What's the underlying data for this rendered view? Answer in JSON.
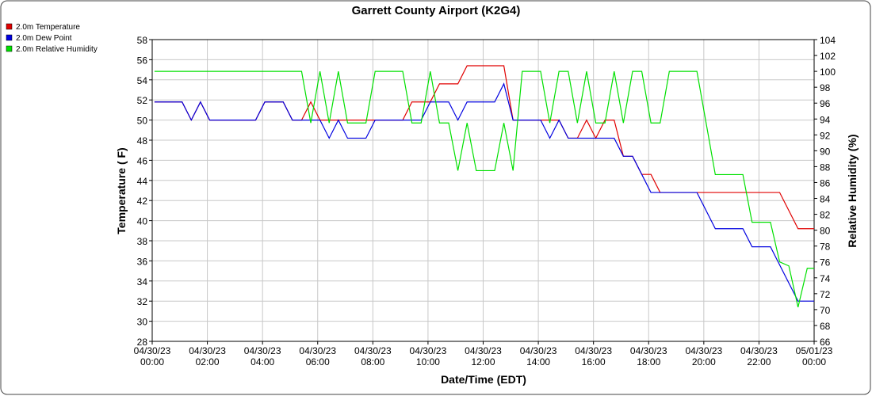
{
  "chart_data": {
    "type": "line",
    "title": "Garrett County Airport (K2G4)",
    "x_label": "Date/Time (EDT)",
    "y_label": "Temperature ( F)",
    "y2_label": "Relative Humidity (%)",
    "grid": true,
    "legend": "top-left",
    "x": [
      5,
      25,
      45,
      65,
      85,
      105,
      125,
      145,
      165,
      185,
      205,
      225,
      245,
      265,
      285,
      305,
      325,
      345,
      365,
      385,
      405,
      425,
      445,
      465,
      485,
      505,
      525,
      545,
      565,
      585,
      605,
      625,
      645,
      665,
      685,
      705,
      725,
      745,
      765,
      785,
      805,
      825,
      845,
      865,
      885,
      905,
      925,
      945,
      965,
      985,
      1005,
      1025,
      1045,
      1065,
      1085,
      1105,
      1125,
      1145,
      1165,
      1185,
      1205,
      1225,
      1245,
      1265,
      1285,
      1305,
      1325,
      1345,
      1365,
      1385,
      1405,
      1425,
      1440
    ],
    "series": [
      {
        "name": "2.0m Temperature",
        "color": "#e00000",
        "values": [
          51.8,
          51.8,
          51.8,
          51.8,
          50,
          51.8,
          50,
          50,
          50,
          50,
          50,
          50,
          51.8,
          51.8,
          51.8,
          50,
          50,
          51.8,
          50,
          50,
          50,
          50,
          50,
          50,
          50,
          50,
          50,
          50,
          51.8,
          51.8,
          51.8,
          53.6,
          53.6,
          53.6,
          55.4,
          55.4,
          55.4,
          55.4,
          55.4,
          50,
          50,
          50,
          50,
          50,
          50,
          48.2,
          48.2,
          50,
          48.2,
          50,
          50,
          46.4,
          46.4,
          44.6,
          44.6,
          42.8,
          42.8,
          42.8,
          42.8,
          42.8,
          42.8,
          42.8,
          42.8,
          42.8,
          42.8,
          42.8,
          42.8,
          42.8,
          42.8,
          41,
          39.2,
          39.2,
          39.2
        ]
      },
      {
        "name": "2.0m Dew Point",
        "color": "#0000e0",
        "values": [
          51.8,
          51.8,
          51.8,
          51.8,
          50,
          51.8,
          50,
          50,
          50,
          50,
          50,
          50,
          51.8,
          51.8,
          51.8,
          50,
          50,
          50,
          50,
          48.2,
          50,
          48.2,
          48.2,
          48.2,
          50,
          50,
          50,
          50,
          50,
          50,
          51.8,
          51.8,
          51.8,
          50,
          51.8,
          51.8,
          51.8,
          51.8,
          53.6,
          50,
          50,
          50,
          50,
          48.2,
          50,
          48.2,
          48.2,
          48.2,
          48.2,
          48.2,
          48.2,
          46.4,
          46.4,
          44.6,
          42.8,
          42.8,
          42.8,
          42.8,
          42.8,
          42.8,
          41,
          39.2,
          39.2,
          39.2,
          39.2,
          37.4,
          37.4,
          37.4,
          35.6,
          33.8,
          32,
          32,
          32
        ]
      },
      {
        "name": "2.0m Relative Humidity",
        "color": "#00e000",
        "axis": "y2",
        "values": [
          100,
          100,
          100,
          100,
          100,
          100,
          100,
          100,
          100,
          100,
          100,
          100,
          100,
          100,
          100,
          100,
          100,
          93.5,
          100,
          93.5,
          100,
          93.5,
          93.5,
          93.5,
          100,
          100,
          100,
          100,
          93.5,
          93.5,
          100,
          93.5,
          93.5,
          87.5,
          93.5,
          87.5,
          87.5,
          87.5,
          93.5,
          87.5,
          100,
          100,
          100,
          93.5,
          100,
          100,
          93.5,
          100,
          93.5,
          93.5,
          100,
          93.5,
          100,
          100,
          93.5,
          93.5,
          100,
          100,
          100,
          100,
          93.5,
          87,
          87,
          87,
          87,
          81,
          81,
          81,
          76,
          75.5,
          70.3,
          75.2,
          75.2
        ]
      }
    ],
    "xlim": [
      0,
      1440
    ],
    "xticks": [
      {
        "value": 0,
        "label": "04/30/23 00:00"
      },
      {
        "value": 120,
        "label": "04/30/23 02:00"
      },
      {
        "value": 240,
        "label": "04/30/23 04:00"
      },
      {
        "value": 360,
        "label": "04/30/23 06:00"
      },
      {
        "value": 480,
        "label": "04/30/23 08:00"
      },
      {
        "value": 600,
        "label": "04/30/23 10:00"
      },
      {
        "value": 720,
        "label": "04/30/23 12:00"
      },
      {
        "value": 840,
        "label": "04/30/23 14:00"
      },
      {
        "value": 960,
        "label": "04/30/23 16:00"
      },
      {
        "value": 1080,
        "label": "04/30/23 18:00"
      },
      {
        "value": 1200,
        "label": "04/30/23 20:00"
      },
      {
        "value": 1320,
        "label": "04/30/23 22:00"
      },
      {
        "value": 1440,
        "label": "05/01/23 00:00"
      }
    ],
    "ylim": [
      28,
      58
    ],
    "yticks": [
      28,
      30,
      32,
      34,
      36,
      38,
      40,
      42,
      44,
      46,
      48,
      50,
      52,
      54,
      56,
      58
    ],
    "y2lim": [
      66,
      104
    ],
    "y2ticks": [
      66,
      68,
      70,
      72,
      74,
      76,
      78,
      80,
      82,
      84,
      86,
      88,
      90,
      92,
      94,
      96,
      98,
      100,
      102,
      104
    ]
  }
}
